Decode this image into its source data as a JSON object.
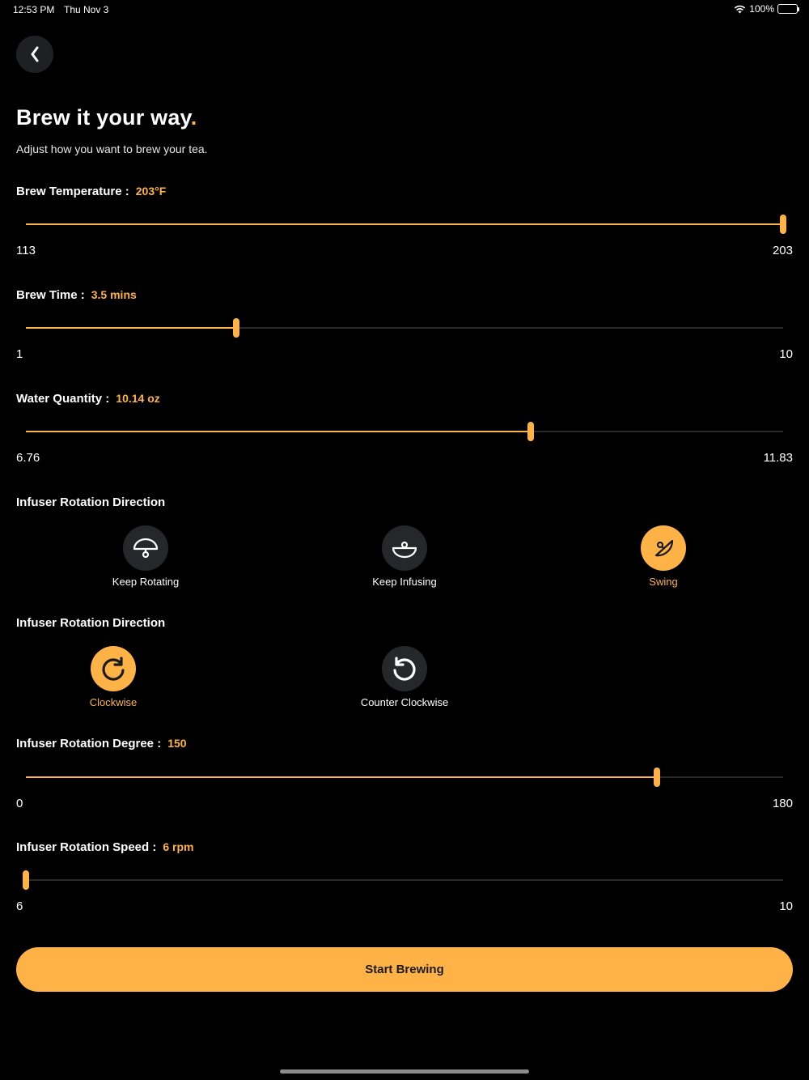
{
  "status_bar": {
    "time": "12:53 PM",
    "date": "Thu Nov 3",
    "battery": "100%"
  },
  "header": {
    "title": "Brew it your way",
    "title_dot": ".",
    "subtitle": "Adjust how you want to brew your tea."
  },
  "brew_temperature": {
    "label": "Brew Temperature :",
    "value": "203°F",
    "min": "113",
    "max": "203",
    "level": 1.0
  },
  "brew_time": {
    "label": "Brew Time :",
    "value": "3.5 mins",
    "min": "1",
    "max": "10",
    "level": 0.278
  },
  "water_quantity": {
    "label": "Water Quantity :",
    "value": "10.14 oz",
    "min": "6.76",
    "max": "11.83",
    "level": 0.667
  },
  "rotation_mode": {
    "label": "Infuser Rotation Direction",
    "options": [
      "Keep Rotating",
      "Keep Infusing",
      "Swing"
    ],
    "selected": "Swing"
  },
  "rotation_direction": {
    "label": "Infuser Rotation Direction",
    "options": [
      "Clockwise",
      "Counter Clockwise"
    ],
    "selected": "Clockwise"
  },
  "rotation_degree": {
    "label": "Infuser Rotation Degree :",
    "value": "150",
    "min": "0",
    "max": "180",
    "level": 0.833
  },
  "rotation_speed": {
    "label": "Infuser Rotation Speed :",
    "value": "6 rpm",
    "min": "6",
    "max": "10",
    "level": 0.0
  },
  "start_button": "Start Brewing",
  "colors": {
    "accent": "#ffb347",
    "background": "#000000",
    "circle": "#26272b"
  },
  "icons": [
    "back-chevron-icon",
    "keep-rotating-icon",
    "keep-infusing-icon",
    "swing-icon",
    "clockwise-icon",
    "counter-clockwise-icon",
    "wifi-icon",
    "battery-icon"
  ]
}
